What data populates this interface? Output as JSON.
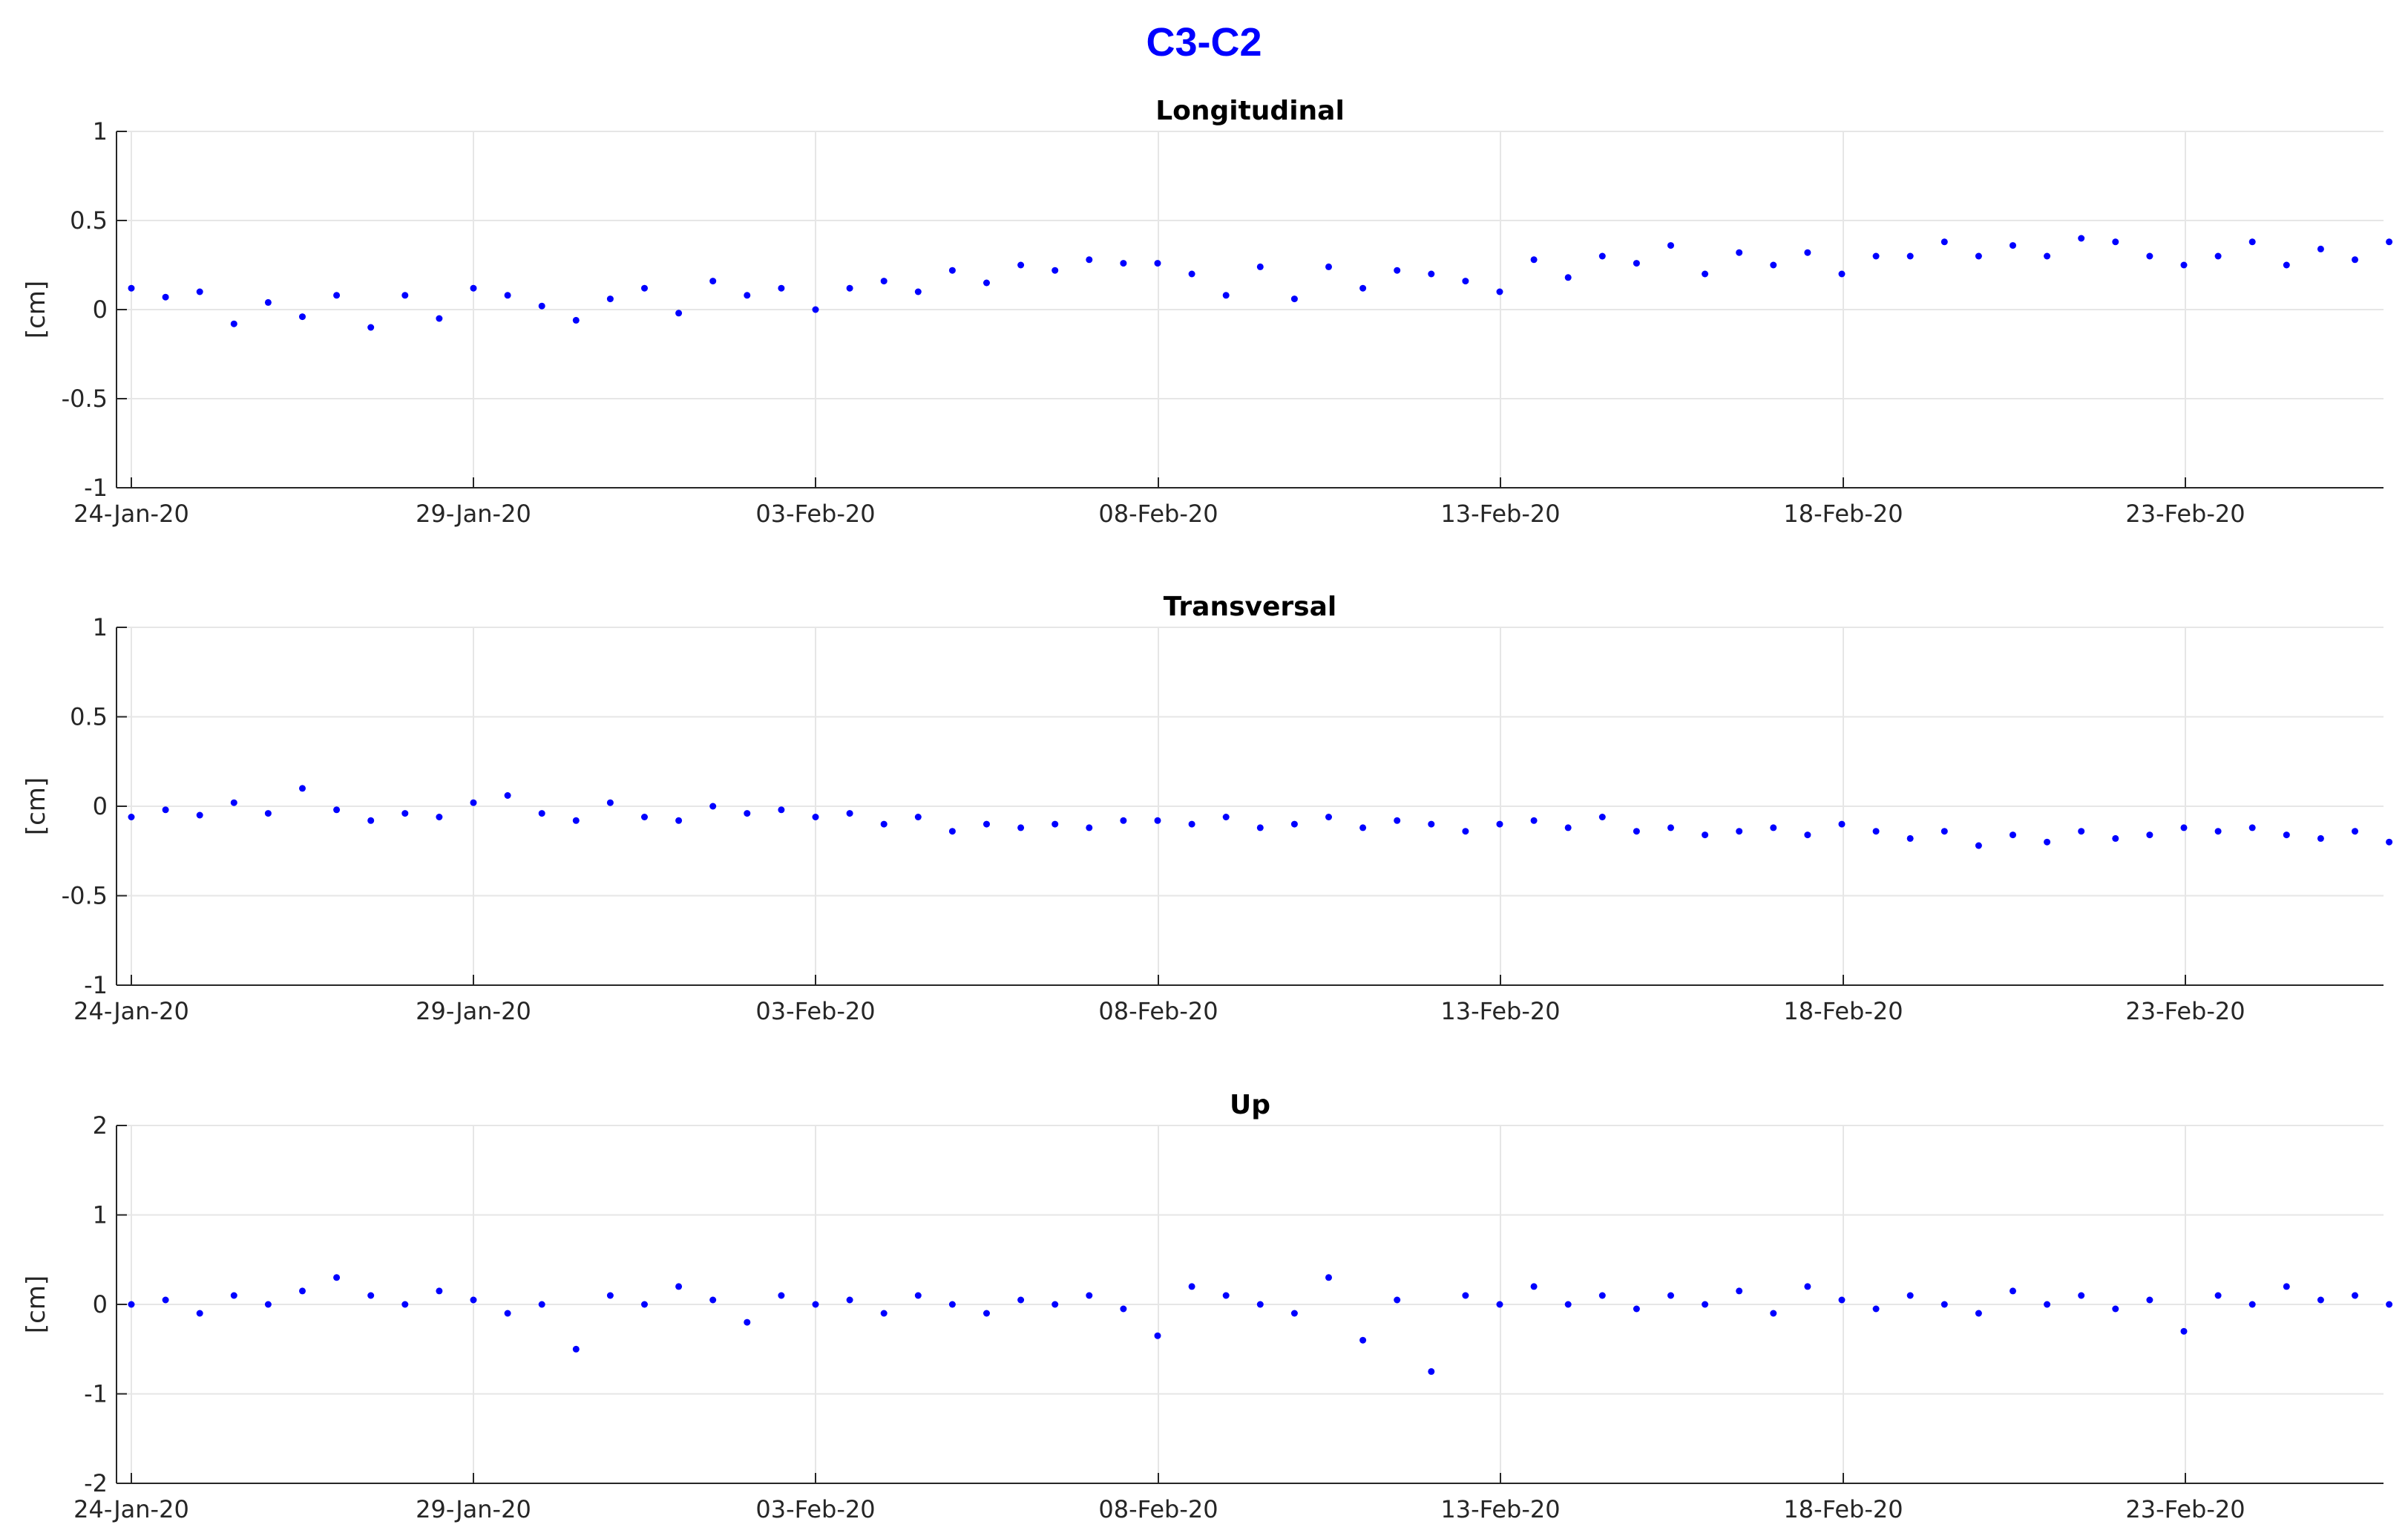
{
  "figure": {
    "title": "C3-C2",
    "colors": {
      "title": "#0000ff",
      "marker": "#0000ff",
      "axis": "#262626",
      "grid": "#e6e6e6"
    }
  },
  "x_tick_labels": [
    "24-Jan-20",
    "29-Jan-20",
    "03-Feb-20",
    "08-Feb-20",
    "13-Feb-20",
    "18-Feb-20",
    "23-Feb-20"
  ],
  "chart_data": [
    {
      "type": "scatter",
      "title": "Longitudinal",
      "ylabel": "[cm]",
      "ylim": [
        -1,
        1
      ],
      "yticks": [
        -1,
        -0.5,
        0,
        0.5,
        1
      ],
      "ytick_labels": [
        "-1",
        "-0.5",
        "0",
        "0.5",
        "1"
      ],
      "xlim": [
        "2020-01-23T20:00",
        "2020-02-26T12:00"
      ],
      "grid": true,
      "series": [
        {
          "marker": "point",
          "x": [
            "2020-01-24",
            "2020-01-24T12:00",
            "2020-01-25",
            "2020-01-25T12:00",
            "2020-01-26",
            "2020-01-26T12:00",
            "2020-01-27",
            "2020-01-27T12:00",
            "2020-01-28",
            "2020-01-28T12:00",
            "2020-01-29",
            "2020-01-29T12:00",
            "2020-01-30",
            "2020-01-30T12:00",
            "2020-01-31",
            "2020-01-31T12:00",
            "2020-02-01",
            "2020-02-01T12:00",
            "2020-02-02",
            "2020-02-02T12:00",
            "2020-02-03",
            "2020-02-03T12:00",
            "2020-02-04",
            "2020-02-04T12:00",
            "2020-02-05",
            "2020-02-05T12:00",
            "2020-02-06",
            "2020-02-06T12:00",
            "2020-02-07",
            "2020-02-07T12:00",
            "2020-02-08",
            "2020-02-08T12:00",
            "2020-02-09",
            "2020-02-09T12:00",
            "2020-02-10",
            "2020-02-10T12:00",
            "2020-02-11",
            "2020-02-11T12:00",
            "2020-02-12",
            "2020-02-12T12:00",
            "2020-02-13",
            "2020-02-13T12:00",
            "2020-02-14",
            "2020-02-14T12:00",
            "2020-02-15",
            "2020-02-15T12:00",
            "2020-02-16",
            "2020-02-16T12:00",
            "2020-02-17",
            "2020-02-17T12:00",
            "2020-02-18",
            "2020-02-18T12:00",
            "2020-02-19",
            "2020-02-19T12:00",
            "2020-02-20",
            "2020-02-20T12:00",
            "2020-02-21",
            "2020-02-21T12:00",
            "2020-02-22",
            "2020-02-22T12:00",
            "2020-02-23",
            "2020-02-23T12:00",
            "2020-02-24",
            "2020-02-24T12:00",
            "2020-02-25",
            "2020-02-25T12:00",
            "2020-02-26"
          ],
          "y": [
            0.12,
            0.07,
            0.1,
            -0.08,
            0.04,
            -0.04,
            0.08,
            -0.1,
            0.08,
            -0.05,
            0.12,
            0.08,
            0.02,
            -0.06,
            0.06,
            0.12,
            -0.02,
            0.16,
            0.08,
            0.12,
            0.0,
            0.12,
            0.16,
            0.1,
            0.22,
            0.15,
            0.25,
            0.22,
            0.28,
            0.26,
            0.26,
            0.2,
            0.08,
            0.24,
            0.06,
            0.24,
            0.12,
            0.22,
            0.2,
            0.16,
            0.1,
            0.28,
            0.18,
            0.3,
            0.26,
            0.36,
            0.2,
            0.32,
            0.25,
            0.32,
            0.2,
            0.3,
            0.3,
            0.38,
            0.3,
            0.36,
            0.3,
            0.4,
            0.38,
            0.3,
            0.25,
            0.3,
            0.38,
            0.25,
            0.34,
            0.28,
            0.38
          ]
        }
      ]
    },
    {
      "type": "scatter",
      "title": "Transversal",
      "ylabel": "[cm]",
      "ylim": [
        -1,
        1
      ],
      "yticks": [
        -1,
        -0.5,
        0,
        0.5,
        1
      ],
      "ytick_labels": [
        "-1",
        "-0.5",
        "0",
        "0.5",
        "1"
      ],
      "xlim": [
        "2020-01-23T20:00",
        "2020-02-26T12:00"
      ],
      "grid": true,
      "series": [
        {
          "marker": "point",
          "x": [
            "2020-01-24",
            "2020-01-24T12:00",
            "2020-01-25",
            "2020-01-25T12:00",
            "2020-01-26",
            "2020-01-26T12:00",
            "2020-01-27",
            "2020-01-27T12:00",
            "2020-01-28",
            "2020-01-28T12:00",
            "2020-01-29",
            "2020-01-29T12:00",
            "2020-01-30",
            "2020-01-30T12:00",
            "2020-01-31",
            "2020-01-31T12:00",
            "2020-02-01",
            "2020-02-01T12:00",
            "2020-02-02",
            "2020-02-02T12:00",
            "2020-02-03",
            "2020-02-03T12:00",
            "2020-02-04",
            "2020-02-04T12:00",
            "2020-02-05",
            "2020-02-05T12:00",
            "2020-02-06",
            "2020-02-06T12:00",
            "2020-02-07",
            "2020-02-07T12:00",
            "2020-02-08",
            "2020-02-08T12:00",
            "2020-02-09",
            "2020-02-09T12:00",
            "2020-02-10",
            "2020-02-10T12:00",
            "2020-02-11",
            "2020-02-11T12:00",
            "2020-02-12",
            "2020-02-12T12:00",
            "2020-02-13",
            "2020-02-13T12:00",
            "2020-02-14",
            "2020-02-14T12:00",
            "2020-02-15",
            "2020-02-15T12:00",
            "2020-02-16",
            "2020-02-16T12:00",
            "2020-02-17",
            "2020-02-17T12:00",
            "2020-02-18",
            "2020-02-18T12:00",
            "2020-02-19",
            "2020-02-19T12:00",
            "2020-02-20",
            "2020-02-20T12:00",
            "2020-02-21",
            "2020-02-21T12:00",
            "2020-02-22",
            "2020-02-22T12:00",
            "2020-02-23",
            "2020-02-23T12:00",
            "2020-02-24",
            "2020-02-24T12:00",
            "2020-02-25",
            "2020-02-25T12:00",
            "2020-02-26"
          ],
          "y": [
            -0.06,
            -0.02,
            -0.05,
            0.02,
            -0.04,
            0.1,
            -0.02,
            -0.08,
            -0.04,
            -0.06,
            0.02,
            0.06,
            -0.04,
            -0.08,
            0.02,
            -0.06,
            -0.08,
            0.0,
            -0.04,
            -0.02,
            -0.06,
            -0.04,
            -0.1,
            -0.06,
            -0.14,
            -0.1,
            -0.12,
            -0.1,
            -0.12,
            -0.08,
            -0.08,
            -0.1,
            -0.06,
            -0.12,
            -0.1,
            -0.06,
            -0.12,
            -0.08,
            -0.1,
            -0.14,
            -0.1,
            -0.08,
            -0.12,
            -0.06,
            -0.14,
            -0.12,
            -0.16,
            -0.14,
            -0.12,
            -0.16,
            -0.1,
            -0.14,
            -0.18,
            -0.14,
            -0.22,
            -0.16,
            -0.2,
            -0.14,
            -0.18,
            -0.16,
            -0.12,
            -0.14,
            -0.12,
            -0.16,
            -0.18,
            -0.14,
            -0.2
          ]
        }
      ]
    },
    {
      "type": "scatter",
      "title": "Up",
      "ylabel": "[cm]",
      "ylim": [
        -2,
        2
      ],
      "yticks": [
        -2,
        -1,
        0,
        1,
        2
      ],
      "ytick_labels": [
        "-2",
        "-1",
        "0",
        "1",
        "2"
      ],
      "xlim": [
        "2020-01-23T20:00",
        "2020-02-26T12:00"
      ],
      "grid": true,
      "series": [
        {
          "marker": "point",
          "x": [
            "2020-01-24",
            "2020-01-24T12:00",
            "2020-01-25",
            "2020-01-25T12:00",
            "2020-01-26",
            "2020-01-26T12:00",
            "2020-01-27",
            "2020-01-27T12:00",
            "2020-01-28",
            "2020-01-28T12:00",
            "2020-01-29",
            "2020-01-29T12:00",
            "2020-01-30",
            "2020-01-30T12:00",
            "2020-01-31",
            "2020-01-31T12:00",
            "2020-02-01",
            "2020-02-01T12:00",
            "2020-02-02",
            "2020-02-02T12:00",
            "2020-02-03",
            "2020-02-03T12:00",
            "2020-02-04",
            "2020-02-04T12:00",
            "2020-02-05",
            "2020-02-05T12:00",
            "2020-02-06",
            "2020-02-06T12:00",
            "2020-02-07",
            "2020-02-07T12:00",
            "2020-02-08",
            "2020-02-08T12:00",
            "2020-02-09",
            "2020-02-09T12:00",
            "2020-02-10",
            "2020-02-10T12:00",
            "2020-02-11",
            "2020-02-11T12:00",
            "2020-02-12",
            "2020-02-12T12:00",
            "2020-02-13",
            "2020-02-13T12:00",
            "2020-02-14",
            "2020-02-14T12:00",
            "2020-02-15",
            "2020-02-15T12:00",
            "2020-02-16",
            "2020-02-16T12:00",
            "2020-02-17",
            "2020-02-17T12:00",
            "2020-02-18",
            "2020-02-18T12:00",
            "2020-02-19",
            "2020-02-19T12:00",
            "2020-02-20",
            "2020-02-20T12:00",
            "2020-02-21",
            "2020-02-21T12:00",
            "2020-02-22",
            "2020-02-22T12:00",
            "2020-02-23",
            "2020-02-23T12:00",
            "2020-02-24",
            "2020-02-24T12:00",
            "2020-02-25",
            "2020-02-25T12:00",
            "2020-02-26"
          ],
          "y": [
            0.0,
            0.05,
            -0.1,
            0.1,
            0.0,
            0.15,
            0.3,
            0.1,
            0.0,
            0.15,
            0.05,
            -0.1,
            0.0,
            -0.5,
            0.1,
            0.0,
            0.2,
            0.05,
            -0.2,
            0.1,
            0.0,
            0.05,
            -0.1,
            0.1,
            0.0,
            -0.1,
            0.05,
            0.0,
            0.1,
            -0.05,
            -0.35,
            0.2,
            0.1,
            0.0,
            -0.1,
            0.3,
            -0.4,
            0.05,
            -0.75,
            0.1,
            0.0,
            0.2,
            0.0,
            0.1,
            -0.05,
            0.1,
            0.0,
            0.15,
            -0.1,
            0.2,
            0.05,
            -0.05,
            0.1,
            0.0,
            -0.1,
            0.15,
            0.0,
            0.1,
            -0.05,
            0.05,
            -0.3,
            0.1,
            0.0,
            0.2,
            0.05,
            0.1,
            0.0
          ]
        }
      ]
    }
  ]
}
